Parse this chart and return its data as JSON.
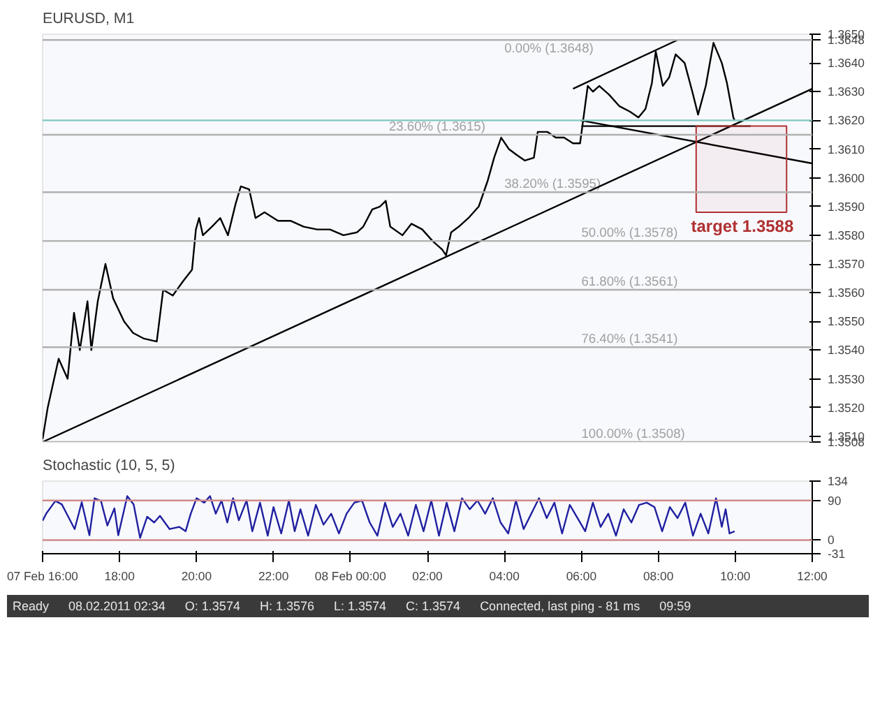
{
  "chart_data": [
    {
      "type": "line",
      "title": "EURUSD, M1",
      "xlim": [
        "2011-02-07T16:00",
        "2011-02-08T12:00"
      ],
      "ylim": [
        1.3508,
        1.365
      ],
      "tick_labels": "y",
      "grid": false,
      "yticks": [
        {
          "value": 1.3508,
          "label": "1.3508"
        },
        {
          "value": 1.351,
          "label": "1.3510"
        },
        {
          "value": 1.352,
          "label": "1.3520"
        },
        {
          "value": 1.353,
          "label": "1.3530"
        },
        {
          "value": 1.354,
          "label": "1.3540"
        },
        {
          "value": 1.355,
          "label": "1.3550"
        },
        {
          "value": 1.356,
          "label": "1.3560"
        },
        {
          "value": 1.357,
          "label": "1.3570"
        },
        {
          "value": 1.358,
          "label": "1.3580"
        },
        {
          "value": 1.359,
          "label": "1.3590"
        },
        {
          "value": 1.36,
          "label": "1.3600"
        },
        {
          "value": 1.361,
          "label": "1.3610"
        },
        {
          "value": 1.362,
          "label": "1.3620"
        },
        {
          "value": 1.363,
          "label": "1.3630"
        },
        {
          "value": 1.364,
          "label": "1.3640"
        },
        {
          "value": 1.3648,
          "label": "1.3648"
        },
        {
          "value": 1.365,
          "label": "1.3650"
        }
      ],
      "series": [
        {
          "color": "#000000",
          "x": [
            "2011-02-07T16:00",
            "2011-02-07T16:08",
            "2011-02-07T16:25",
            "2011-02-07T16:39",
            "2011-02-07T16:49",
            "2011-02-07T16:58",
            "2011-02-07T17:10",
            "2011-02-07T17:16",
            "2011-02-07T17:26",
            "2011-02-07T17:38",
            "2011-02-07T17:50",
            "2011-02-07T18:07",
            "2011-02-07T18:21",
            "2011-02-07T18:38",
            "2011-02-07T18:58",
            "2011-02-07T19:08",
            "2011-02-07T19:23",
            "2011-02-07T19:39",
            "2011-02-07T19:53",
            "2011-02-07T19:59",
            "2011-02-07T20:04",
            "2011-02-07T20:10",
            "2011-02-07T20:24",
            "2011-02-07T20:37",
            "2011-02-07T20:49",
            "2011-02-07T21:01",
            "2011-02-07T21:09",
            "2011-02-07T21:22",
            "2011-02-07T21:32",
            "2011-02-07T21:46",
            "2011-02-07T22:07",
            "2011-02-07T22:27",
            "2011-02-07T22:47",
            "2011-02-07T23:08",
            "2011-02-07T23:28",
            "2011-02-07T23:49",
            "2011-02-08T00:10",
            "2011-02-08T00:20",
            "2011-02-08T00:34",
            "2011-02-08T00:46",
            "2011-02-08T00:55",
            "2011-02-08T01:02",
            "2011-02-08T01:21",
            "2011-02-08T01:35",
            "2011-02-08T01:52",
            "2011-02-08T02:08",
            "2011-02-08T02:23",
            "2011-02-08T02:29",
            "2011-02-08T02:37",
            "2011-02-08T02:49",
            "2011-02-08T03:04",
            "2011-02-08T03:20",
            "2011-02-08T03:34",
            "2011-02-08T03:44",
            "2011-02-08T03:55",
            "2011-02-08T04:07",
            "2011-02-08T04:19",
            "2011-02-08T04:32",
            "2011-02-08T04:46",
            "2011-02-08T04:52",
            "2011-02-08T05:07",
            "2011-02-08T05:20",
            "2011-02-08T05:33",
            "2011-02-08T05:47",
            "2011-02-08T05:58",
            "2011-02-08T06:04",
            "2011-02-08T06:10",
            "2011-02-08T06:18",
            "2011-02-08T06:28",
            "2011-02-08T06:43",
            "2011-02-08T06:59",
            "2011-02-08T07:16",
            "2011-02-08T07:29",
            "2011-02-08T07:40",
            "2011-02-08T07:50",
            "2011-02-08T07:56",
            "2011-02-08T08:07",
            "2011-02-08T08:17",
            "2011-02-08T08:27",
            "2011-02-08T08:41",
            "2011-02-08T08:53",
            "2011-02-08T09:02",
            "2011-02-08T09:14",
            "2011-02-08T09:26",
            "2011-02-08T09:39",
            "2011-02-08T09:47",
            "2011-02-08T09:57",
            "2011-02-08T09:59"
          ],
          "values": [
            1.3509,
            1.352,
            1.3537,
            1.353,
            1.3553,
            1.354,
            1.3557,
            1.354,
            1.3557,
            1.357,
            1.3558,
            1.355,
            1.3546,
            1.3544,
            1.3543,
            1.3561,
            1.3559,
            1.3564,
            1.3568,
            1.3582,
            1.3586,
            1.358,
            1.3583,
            1.3586,
            1.358,
            1.3591,
            1.3597,
            1.3596,
            1.3586,
            1.3588,
            1.3585,
            1.3585,
            1.3583,
            1.3582,
            1.3582,
            1.358,
            1.3581,
            1.3583,
            1.3589,
            1.359,
            1.3592,
            1.3583,
            1.358,
            1.3584,
            1.3582,
            1.3578,
            1.3575,
            1.3573,
            1.3581,
            1.3583,
            1.3586,
            1.359,
            1.3599,
            1.3607,
            1.3614,
            1.361,
            1.3608,
            1.3606,
            1.3607,
            1.3616,
            1.3616,
            1.3614,
            1.3614,
            1.3612,
            1.3612,
            1.3622,
            1.3632,
            1.363,
            1.3632,
            1.3629,
            1.3625,
            1.3623,
            1.3621,
            1.3624,
            1.3633,
            1.3644,
            1.3632,
            1.3635,
            1.3643,
            1.364,
            1.363,
            1.3622,
            1.3632,
            1.3647,
            1.364,
            1.3633,
            1.3621,
            1.362
          ]
        },
        {
          "type": "line",
          "color": "#000000",
          "x": [
            "2011-02-07T16:00",
            "2011-02-08T12:00"
          ],
          "values": [
            1.3508,
            1.3631
          ]
        },
        {
          "type": "line",
          "color": "#000000",
          "x": [
            "2011-02-08T05:47",
            "2011-02-08T08:30"
          ],
          "values": [
            1.3631,
            1.3648
          ]
        },
        {
          "type": "line",
          "color": "#000000",
          "x": [
            "2011-02-08T05:59",
            "2011-02-08T12:00"
          ],
          "values": [
            1.362,
            1.3605
          ]
        },
        {
          "type": "line",
          "color": "#000000",
          "x": [
            "2011-02-08T06:00",
            "2011-02-08T10:24"
          ],
          "values": [
            1.3618,
            1.3618
          ]
        }
      ],
      "ref_lines": [
        {
          "axis": "y",
          "value": 1.362,
          "color": "#7fc8c0"
        },
        {
          "axis": "y",
          "value": 1.3648,
          "label": "0.00% (1.3648)",
          "color": "#b0b0b0"
        },
        {
          "axis": "y",
          "value": 1.3615,
          "label": "23.60% (1.3615)",
          "color": "#b0b0b0"
        },
        {
          "axis": "y",
          "value": 1.3595,
          "label": "38.20% (1.3595)",
          "color": "#b0b0b0"
        },
        {
          "axis": "y",
          "value": 1.3578,
          "label": "50.00% (1.3578)",
          "color": "#b0b0b0"
        },
        {
          "axis": "y",
          "value": 1.3561,
          "label": "61.80% (1.3561)",
          "color": "#b0b0b0"
        },
        {
          "axis": "y",
          "value": 1.3541,
          "label": "76.40% (1.3541)",
          "color": "#b0b0b0"
        },
        {
          "axis": "y",
          "value": 1.3508,
          "label": "100.00% (1.3508)",
          "color": "#b0b0b0"
        }
      ],
      "bands": [
        {
          "axis": "y",
          "from": 1.3588,
          "to": 1.3618,
          "label": "target 1.3588",
          "color": "#b03030"
        }
      ]
    },
    {
      "type": "line",
      "title": "Stochastic (10, 5, 5)",
      "xlim": [
        "2011-02-07T16:00",
        "2011-02-08T12:00"
      ],
      "ylim": [
        -31,
        134
      ],
      "grid": false,
      "xticks": [
        {
          "value": "2011-02-07T16:00",
          "label": "07 Feb 16:00"
        },
        {
          "value": "2011-02-07T18:00",
          "label": "18:00"
        },
        {
          "value": "2011-02-07T20:00",
          "label": "20:00"
        },
        {
          "value": "2011-02-07T22:00",
          "label": "22:00"
        },
        {
          "value": "2011-02-08T00:00",
          "label": "08 Feb 00:00"
        },
        {
          "value": "2011-02-08T02:00",
          "label": "02:00"
        },
        {
          "value": "2011-02-08T04:00",
          "label": "04:00"
        },
        {
          "value": "2011-02-08T06:00",
          "label": "06:00"
        },
        {
          "value": "2011-02-08T08:00",
          "label": "08:00"
        },
        {
          "value": "2011-02-08T10:00",
          "label": "10:00"
        },
        {
          "value": "2011-02-08T12:00",
          "label": "12:00"
        }
      ],
      "yticks": [
        -31,
        0,
        90,
        134
      ],
      "series": [
        {
          "color": "#2020a0",
          "x": [
            "2011-02-07T16:00",
            "2011-02-07T16:06",
            "2011-02-07T16:20",
            "2011-02-07T16:30",
            "2011-02-07T16:40",
            "2011-02-07T16:50",
            "2011-02-07T17:01",
            "2011-02-07T17:13",
            "2011-02-07T17:21",
            "2011-02-07T17:31",
            "2011-02-07T17:41",
            "2011-02-07T17:52",
            "2011-02-07T17:58",
            "2011-02-07T18:12",
            "2011-02-07T18:22",
            "2011-02-07T18:32",
            "2011-02-07T18:43",
            "2011-02-07T18:54",
            "2011-02-07T19:03",
            "2011-02-07T19:18",
            "2011-02-07T19:33",
            "2011-02-07T19:43",
            "2011-02-07T19:51",
            "2011-02-07T20:00",
            "2011-02-07T20:12",
            "2011-02-07T20:21",
            "2011-02-07T20:30",
            "2011-02-07T20:39",
            "2011-02-07T20:48",
            "2011-02-07T20:57",
            "2011-02-07T21:06",
            "2011-02-07T21:18",
            "2011-02-07T21:27",
            "2011-02-07T21:39",
            "2011-02-07T21:51",
            "2011-02-07T22:00",
            "2011-02-07T22:12",
            "2011-02-07T22:24",
            "2011-02-07T22:33",
            "2011-02-07T22:42",
            "2011-02-07T22:54",
            "2011-02-07T23:06",
            "2011-02-07T23:18",
            "2011-02-07T23:30",
            "2011-02-07T23:42",
            "2011-02-07T23:54",
            "2011-02-08T00:06",
            "2011-02-08T00:18",
            "2011-02-08T00:30",
            "2011-02-08T00:42",
            "2011-02-08T00:54",
            "2011-02-08T01:06",
            "2011-02-08T01:18",
            "2011-02-08T01:30",
            "2011-02-08T01:42",
            "2011-02-08T01:54",
            "2011-02-08T02:06",
            "2011-02-08T02:18",
            "2011-02-08T02:30",
            "2011-02-08T02:42",
            "2011-02-08T02:54",
            "2011-02-08T03:06",
            "2011-02-08T03:18",
            "2011-02-08T03:30",
            "2011-02-08T03:42",
            "2011-02-08T03:54",
            "2011-02-08T04:06",
            "2011-02-08T04:18",
            "2011-02-08T04:30",
            "2011-02-08T04:42",
            "2011-02-08T04:54",
            "2011-02-08T05:06",
            "2011-02-08T05:18",
            "2011-02-08T05:30",
            "2011-02-08T05:42",
            "2011-02-08T05:54",
            "2011-02-08T06:06",
            "2011-02-08T06:18",
            "2011-02-08T06:30",
            "2011-02-08T06:42",
            "2011-02-08T06:54",
            "2011-02-08T07:06",
            "2011-02-08T07:18",
            "2011-02-08T07:30",
            "2011-02-08T07:42",
            "2011-02-08T07:54",
            "2011-02-08T08:06",
            "2011-02-08T08:18",
            "2011-02-08T08:30",
            "2011-02-08T08:42",
            "2011-02-08T08:54",
            "2011-02-08T09:06",
            "2011-02-08T09:18",
            "2011-02-08T09:30",
            "2011-02-08T09:39",
            "2011-02-08T09:45",
            "2011-02-08T09:51",
            "2011-02-08T09:59"
          ],
          "values": [
            44,
            61,
            89,
            81,
            53,
            25,
            86,
            11,
            95,
            89,
            33,
            72,
            11,
            100,
            81,
            5,
            53,
            40,
            55,
            25,
            30,
            20,
            60,
            95,
            85,
            100,
            60,
            90,
            40,
            95,
            45,
            90,
            20,
            85,
            10,
            75,
            15,
            90,
            20,
            70,
            10,
            80,
            35,
            60,
            15,
            60,
            85,
            90,
            40,
            10,
            85,
            30,
            60,
            10,
            80,
            20,
            90,
            10,
            85,
            20,
            95,
            70,
            90,
            60,
            95,
            40,
            15,
            90,
            25,
            60,
            95,
            50,
            85,
            15,
            80,
            50,
            20,
            85,
            30,
            60,
            10,
            70,
            40,
            80,
            85,
            75,
            20,
            75,
            50,
            85,
            10,
            60,
            15,
            95,
            30,
            70,
            15,
            20
          ]
        }
      ],
      "ref_lines": [
        {
          "axis": "y",
          "value": 90,
          "color": "#d08a8a"
        },
        {
          "axis": "y",
          "value": 0,
          "color": "#d08a8a"
        }
      ],
      "annotations": [
        "Ready",
        "08.02.2011 02:34",
        "O: 1.3574",
        "H: 1.3576",
        "L: 1.3574",
        "C: 1.3574",
        "Connected, last ping - 81 ms",
        "09:59"
      ]
    }
  ]
}
